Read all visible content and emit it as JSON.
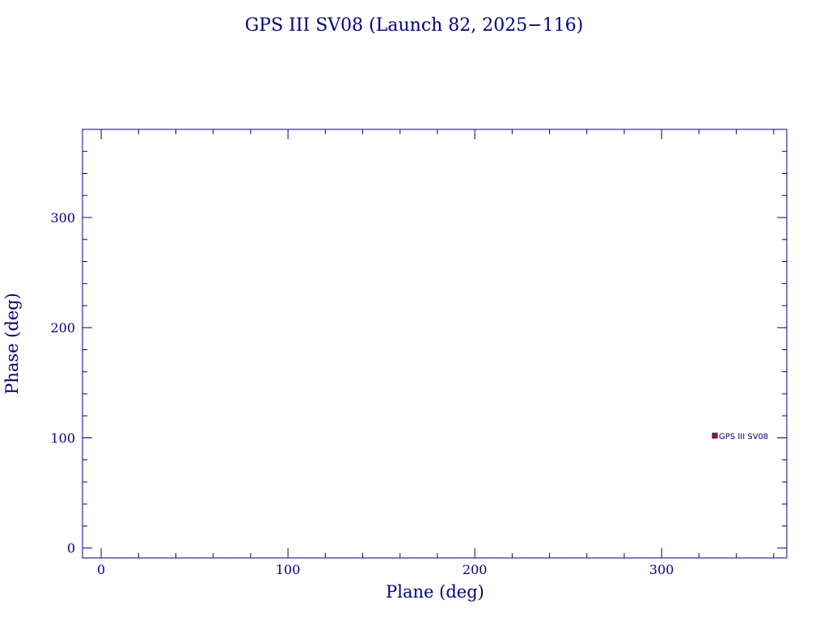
{
  "chart_data": {
    "type": "scatter",
    "title": "GPS III SV08 (Launch 82, 2025−116)",
    "xlabel": "Plane (deg)",
    "ylabel": "Phase (deg)",
    "xlim": [
      -10,
      367
    ],
    "ylim": [
      -9,
      380
    ],
    "x_ticks": [
      0,
      100,
      200,
      300
    ],
    "x_minor_step": 20,
    "y_ticks": [
      0,
      100,
      200,
      300
    ],
    "y_minor_step": 20,
    "grid": false,
    "points": [
      {
        "x": 328.5,
        "y": 102,
        "label": "GPS III SV08"
      }
    ],
    "colors": {
      "axis": "#000080",
      "text": "#000080",
      "marker_fill": "#cc0000",
      "marker_edge": "#000080"
    }
  }
}
